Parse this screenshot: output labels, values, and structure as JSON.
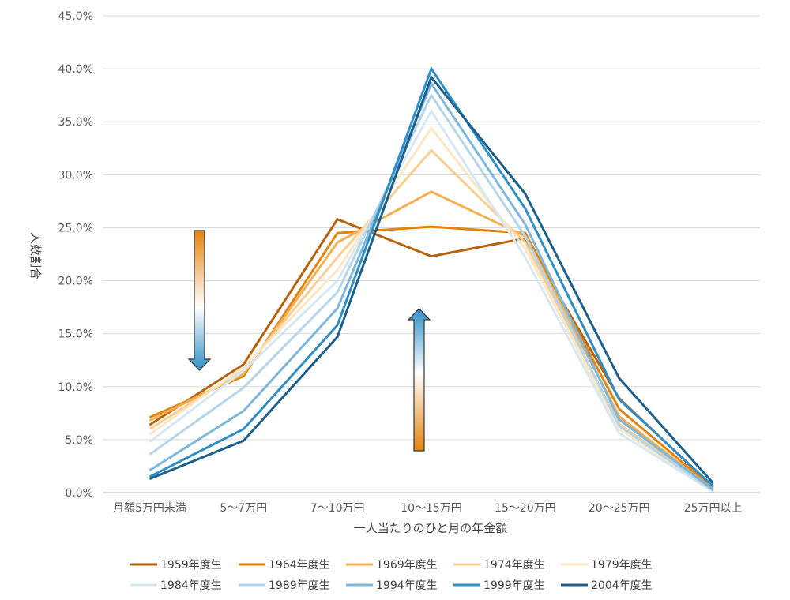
{
  "chart_data": {
    "type": "line",
    "categories": [
      "月額5万円未満",
      "5～7万円",
      "7～10万円",
      "10～15万円",
      "15～20万円",
      "20～25万円",
      "25万円以上"
    ],
    "xlabel": "一人当たりのひと月の年金額",
    "ylabel": "人数割合",
    "ylim": [
      0,
      45
    ],
    "yticks": [
      "0.0%",
      "5.0%",
      "10.0%",
      "15.0%",
      "20.0%",
      "25.0%",
      "30.0%",
      "35.0%",
      "40.0%",
      "45.0%"
    ],
    "grid": true,
    "legend_position": "bottom",
    "series": [
      {
        "name": "1959年度生",
        "color": "#b5620c",
        "values": [
          6.4,
          12.1,
          25.8,
          22.3,
          24.0,
          8.9,
          0.5
        ]
      },
      {
        "name": "1964年度生",
        "color": "#e3840f",
        "values": [
          7.1,
          11.0,
          24.5,
          25.1,
          24.5,
          7.9,
          0.4
        ]
      },
      {
        "name": "1969年度生",
        "color": "#f5ae52",
        "values": [
          6.8,
          11.2,
          23.6,
          28.4,
          24.2,
          7.2,
          0.3
        ]
      },
      {
        "name": "1974年度生",
        "color": "#f9cf8f",
        "values": [
          6.0,
          11.6,
          22.2,
          32.3,
          23.6,
          6.5,
          0.2
        ]
      },
      {
        "name": "1979年度生",
        "color": "#fde6c4",
        "values": [
          5.5,
          11.8,
          21.0,
          34.4,
          23.0,
          6.0,
          0.2
        ]
      },
      {
        "name": "1984年度生",
        "color": "#d6e8f3",
        "values": [
          4.8,
          11.5,
          20.0,
          36.0,
          22.2,
          5.6,
          0.1
        ]
      },
      {
        "name": "1989年度生",
        "color": "#b4d5ea",
        "values": [
          3.6,
          9.9,
          18.9,
          37.5,
          24.2,
          6.3,
          0.2
        ]
      },
      {
        "name": "1994年度生",
        "color": "#7db8dc",
        "values": [
          2.1,
          7.7,
          17.4,
          38.6,
          25.3,
          6.9,
          0.3
        ]
      },
      {
        "name": "1999年度生",
        "color": "#2e8fc7",
        "values": [
          1.5,
          6.0,
          15.8,
          40.0,
          26.8,
          8.8,
          0.6
        ]
      },
      {
        "name": "2004年度生",
        "color": "#1b5f8c",
        "values": [
          1.3,
          4.9,
          14.7,
          39.2,
          28.2,
          10.8,
          0.9
        ]
      }
    ]
  }
}
